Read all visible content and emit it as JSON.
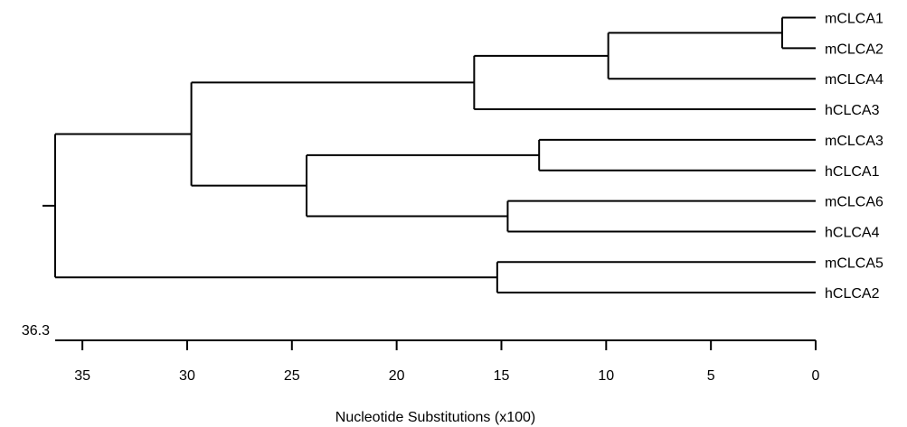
{
  "chart_data": {
    "type": "dendrogram",
    "title": "",
    "xlabel": "Nucleotide Substitutions (x100)",
    "axis_origin_label": "36.3",
    "x_ticks": [
      35,
      30,
      25,
      20,
      15,
      10,
      5,
      0
    ],
    "xlim": [
      36.3,
      0
    ],
    "leaves": [
      "mCLCA1",
      "mCLCA2",
      "mCLCA4",
      "hCLCA3",
      "mCLCA3",
      "hCLCA1",
      "mCLCA6",
      "hCLCA4",
      "mCLCA5",
      "hCLCA2"
    ],
    "nodes": [
      {
        "id": "n1",
        "height": 1.6,
        "children": [
          "mCLCA1",
          "mCLCA2"
        ]
      },
      {
        "id": "n2",
        "height": 9.9,
        "children": [
          "n1",
          "mCLCA4"
        ]
      },
      {
        "id": "n3",
        "height": 16.3,
        "children": [
          "n2",
          "hCLCA3"
        ]
      },
      {
        "id": "n4",
        "height": 13.2,
        "children": [
          "mCLCA3",
          "hCLCA1"
        ]
      },
      {
        "id": "n5",
        "height": 14.7,
        "children": [
          "mCLCA6",
          "hCLCA4"
        ]
      },
      {
        "id": "n6",
        "height": 24.3,
        "children": [
          "n4",
          "n5"
        ]
      },
      {
        "id": "n7",
        "height": 29.8,
        "children": [
          "n3",
          "n6"
        ]
      },
      {
        "id": "n8",
        "height": 15.2,
        "children": [
          "mCLCA5",
          "hCLCA2"
        ]
      },
      {
        "id": "n9",
        "height": 36.3,
        "children": [
          "n7",
          "n8"
        ]
      }
    ],
    "root_id": "n9"
  }
}
